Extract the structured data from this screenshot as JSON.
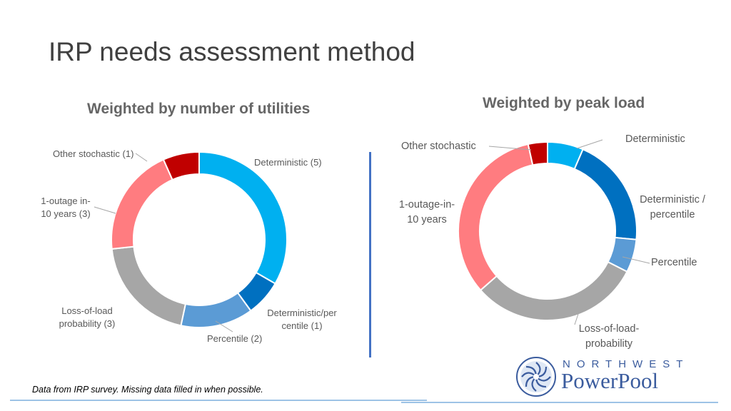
{
  "page": {
    "title": "IRP needs assessment method",
    "footer_note": "Data from IRP survey. Missing data filled in when possible.",
    "logo_top": "NORTHWEST",
    "logo_bottom": "PowerPool"
  },
  "colors": {
    "deterministic": "#00b0f0",
    "deterministic_percentile": "#0070c0",
    "percentile": "#5b9bd5",
    "loss_of_load": "#a6a6a6",
    "one_outage": "#ff7c80",
    "other_stochastic": "#c00000",
    "divider": "#4472c4",
    "logo": "#3b5c9e"
  },
  "chart_data": [
    {
      "type": "pie",
      "style": "donut",
      "title": "Weighted by number of utilities",
      "categories": [
        "Deterministic",
        "Deterministic/percentile",
        "Percentile",
        "Loss-of-load probability",
        "1-outage in-10 years",
        "Other stochastic"
      ],
      "values": [
        5,
        1,
        2,
        3,
        3,
        1
      ],
      "labels": {
        "deterministic": "Deterministic (5)",
        "det_pct_1": "Deterministic/per",
        "det_pct_2": "centile (1)",
        "percentile": "Percentile (2)",
        "lol_1": "Loss-of-load",
        "lol_2": "probability (3)",
        "outage_1": "1-outage in-",
        "outage_2": "10 years (3)",
        "other": "Other stochastic (1)"
      }
    },
    {
      "type": "pie",
      "style": "donut",
      "title": "Weighted by peak load",
      "categories": [
        "Deterministic",
        "Deterministic / percentile",
        "Percentile",
        "Loss-of-load-probability",
        "1-outage-in-10 years",
        "Other stochastic"
      ],
      "values": [
        6.5,
        20,
        6,
        31,
        33,
        3.5
      ],
      "labels": {
        "deterministic": "Deterministic",
        "det_pct_1": "Deterministic /",
        "det_pct_2": "percentile",
        "percentile": "Percentile",
        "lol_1": "Loss-of-load-",
        "lol_2": "probability",
        "outage_1": "1-outage-in-",
        "outage_2": "10 years",
        "other": "Other stochastic"
      }
    }
  ]
}
